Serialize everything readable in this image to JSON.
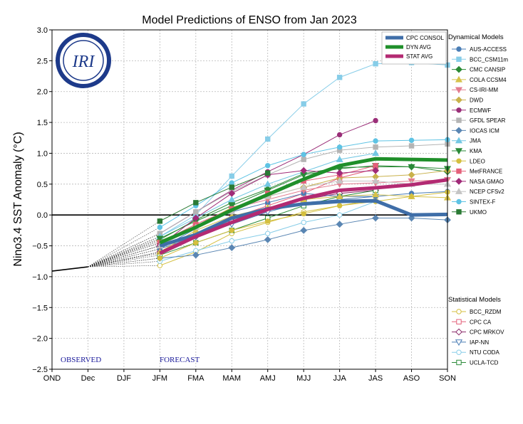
{
  "chart_data": {
    "type": "line",
    "title": "Model Predictions of ENSO from Jan 2023",
    "ylabel": "Nino3.4 SST Anomaly (°C)",
    "xlabel": "",
    "categories": [
      "OND",
      "Dec",
      "DJF",
      "JFM",
      "FMA",
      "MAM",
      "AMJ",
      "MJJ",
      "JJA",
      "JAS",
      "ASO",
      "SON"
    ],
    "ylim": [
      -2.5,
      3.0
    ],
    "yticks": [
      "3.0",
      "2.5",
      "2.0",
      "1.5",
      "1.0",
      "0.5",
      "0.0",
      "−0.5",
      "−1.0",
      "−1.5",
      "−2.0",
      "−2.5"
    ],
    "grid": true,
    "logo_text": "IRI",
    "annotations": {
      "observed": "OBSERVED",
      "forecast": "FORECAST"
    },
    "observed": {
      "x": [
        "OND",
        "Dec"
      ],
      "values": [
        -0.91,
        -0.84
      ]
    },
    "legend_avg": [
      {
        "name": "CPC CONSOL",
        "color": "#3f6ea8"
      },
      {
        "name": "DYN AVG",
        "color": "#1f8f2a"
      },
      {
        "name": "STAT AVG",
        "color": "#b32a72"
      }
    ],
    "dynamical_title": "Dynamical Models",
    "statistical_title": "Statistical Models",
    "average_series": [
      {
        "name": "CPC CONSOL",
        "color": "#3f6ea8",
        "values": [
          null,
          null,
          null,
          -0.5,
          -0.32,
          -0.05,
          0.1,
          0.18,
          0.22,
          0.23,
          0.0,
          0.01
        ]
      },
      {
        "name": "DYN AVG",
        "color": "#1f8f2a",
        "values": [
          null,
          null,
          null,
          -0.45,
          -0.2,
          0.08,
          0.33,
          0.58,
          0.8,
          0.91,
          0.9,
          0.89
        ]
      },
      {
        "name": "STAT AVG",
        "color": "#b32a72",
        "values": [
          null,
          null,
          null,
          -0.62,
          -0.35,
          -0.12,
          0.09,
          0.27,
          0.4,
          0.44,
          0.49,
          0.57
        ]
      }
    ],
    "dynamical_series": [
      {
        "name": "AUS-ACCESS",
        "color": "#4a7db5",
        "marker": "circle",
        "values": [
          null,
          null,
          null,
          -0.55,
          -0.22,
          0.05,
          0.2,
          0.35,
          0.3,
          0.3,
          0.35,
          0.38
        ]
      },
      {
        "name": "BCC_CSM11m",
        "color": "#87cde8",
        "marker": "square",
        "values": [
          null,
          null,
          null,
          -0.35,
          0.0,
          0.63,
          1.23,
          1.8,
          2.23,
          2.45,
          2.47,
          2.43
        ]
      },
      {
        "name": "CMC CANSIP",
        "color": "#2a8a34",
        "marker": "diamond",
        "values": [
          null,
          null,
          null,
          -0.4,
          -0.08,
          0.2,
          0.42,
          0.67,
          0.77,
          0.78,
          0.78,
          0.7
        ]
      },
      {
        "name": "COLA CCSM4",
        "color": "#d6c24a",
        "marker": "triangle",
        "values": [
          null,
          null,
          null,
          -0.6,
          -0.25,
          -0.02,
          0.12,
          0.25,
          0.3,
          0.33,
          0.3,
          0.28
        ]
      },
      {
        "name": "CS-IRI-MM",
        "color": "#e37c8f",
        "marker": "triangle-down",
        "values": [
          null,
          null,
          null,
          -0.5,
          -0.18,
          0.1,
          0.25,
          0.4,
          0.5,
          0.52,
          0.55,
          0.57
        ]
      },
      {
        "name": "DWD",
        "color": "#c9b14b",
        "marker": "diamond",
        "values": [
          null,
          null,
          null,
          -0.42,
          -0.18,
          0.12,
          0.3,
          0.45,
          0.6,
          0.62,
          0.65,
          0.72
        ]
      },
      {
        "name": "ECMWF",
        "color": "#9a2e78",
        "marker": "circle",
        "values": [
          null,
          null,
          null,
          -0.3,
          0.05,
          0.4,
          0.7,
          0.98,
          1.3,
          1.53,
          null,
          null
        ]
      },
      {
        "name": "GFDL SPEAR",
        "color": "#b4b4b4",
        "marker": "square",
        "values": [
          null,
          null,
          null,
          -0.3,
          0.05,
          0.38,
          0.65,
          0.9,
          1.05,
          1.1,
          1.12,
          1.15
        ]
      },
      {
        "name": "IOCAS ICM",
        "color": "#5a86b3",
        "marker": "diamond",
        "values": [
          null,
          null,
          null,
          -0.7,
          -0.65,
          -0.53,
          -0.4,
          -0.25,
          -0.15,
          -0.05,
          -0.05,
          -0.08
        ]
      },
      {
        "name": "JMA",
        "color": "#73c7e3",
        "marker": "triangle",
        "values": [
          null,
          null,
          null,
          -0.35,
          -0.05,
          0.25,
          0.5,
          0.7,
          0.9,
          1.0,
          null,
          null
        ]
      },
      {
        "name": "KMA",
        "color": "#2a8a38",
        "marker": "triangle-down",
        "values": [
          null,
          null,
          null,
          -0.38,
          -0.1,
          0.15,
          0.4,
          0.65,
          0.75,
          0.8,
          0.78,
          0.75
        ]
      },
      {
        "name": "LDEO",
        "color": "#d4bf3f",
        "marker": "circle",
        "values": [
          null,
          null,
          null,
          -0.7,
          -0.45,
          -0.25,
          -0.1,
          0.02,
          0.15,
          0.22,
          0.3,
          0.37
        ]
      },
      {
        "name": "MetFRANCE",
        "color": "#e4607a",
        "marker": "square",
        "values": [
          null,
          null,
          null,
          -0.45,
          -0.15,
          0.1,
          0.35,
          0.55,
          0.65,
          0.8,
          null,
          null
        ]
      },
      {
        "name": "NASA GMAO",
        "color": "#a02a78",
        "marker": "diamond",
        "values": [
          null,
          null,
          null,
          -0.5,
          -0.05,
          0.35,
          0.65,
          0.72,
          0.68,
          0.72,
          null,
          null
        ]
      },
      {
        "name": "NCEP CFSv2",
        "color": "#c4c4c4",
        "marker": "triangle",
        "values": [
          null,
          null,
          null,
          -0.5,
          -0.2,
          0.05,
          0.3,
          0.45,
          0.55,
          0.55,
          0.5,
          0.5
        ]
      },
      {
        "name": "SINTEX-F",
        "color": "#5ec3e4",
        "marker": "circle",
        "values": [
          null,
          null,
          null,
          -0.2,
          0.15,
          0.52,
          0.8,
          0.98,
          1.1,
          1.2,
          1.21,
          1.22
        ]
      },
      {
        "name": "UKMO",
        "color": "#2a7a34",
        "marker": "square",
        "values": [
          null,
          null,
          null,
          -0.1,
          0.2,
          0.45,
          0.68,
          null,
          null,
          null,
          null,
          null
        ]
      }
    ],
    "statistical_series": [
      {
        "name": "BCC_RZDM",
        "color": "#d4bf3f",
        "marker": "circle",
        "values": [
          null,
          null,
          null,
          -0.82,
          -0.6,
          -0.3,
          -0.12,
          0.05,
          0.15,
          0.25,
          null,
          null
        ]
      },
      {
        "name": "CPC CA",
        "color": "#e4607a",
        "marker": "square",
        "values": [
          null,
          null,
          null,
          -0.6,
          -0.3,
          -0.05,
          0.15,
          0.35,
          0.6,
          0.75,
          null,
          null
        ]
      },
      {
        "name": "CPC MRKOV",
        "color": "#8a2a6a",
        "marker": "diamond",
        "values": [
          null,
          null,
          null,
          -0.6,
          -0.35,
          -0.1,
          0.1,
          0.25,
          0.35,
          0.4,
          null,
          null
        ]
      },
      {
        "name": "IAP-NN",
        "color": "#4a7db5",
        "marker": "triangle-down",
        "values": [
          null,
          null,
          null,
          -0.55,
          -0.35,
          -0.15,
          0.05,
          0.2,
          0.25,
          0.3,
          null,
          null
        ]
      },
      {
        "name": "NTU CODA",
        "color": "#87cde8",
        "marker": "circle",
        "values": [
          null,
          null,
          null,
          -0.75,
          -0.58,
          -0.42,
          -0.3,
          -0.12,
          0.0,
          0.22,
          null,
          null
        ]
      },
      {
        "name": "UCLA-TCD",
        "color": "#2a8a38",
        "marker": "square",
        "values": [
          null,
          null,
          null,
          -0.65,
          -0.45,
          -0.25,
          -0.05,
          0.15,
          0.3,
          0.4,
          null,
          null
        ]
      }
    ]
  }
}
